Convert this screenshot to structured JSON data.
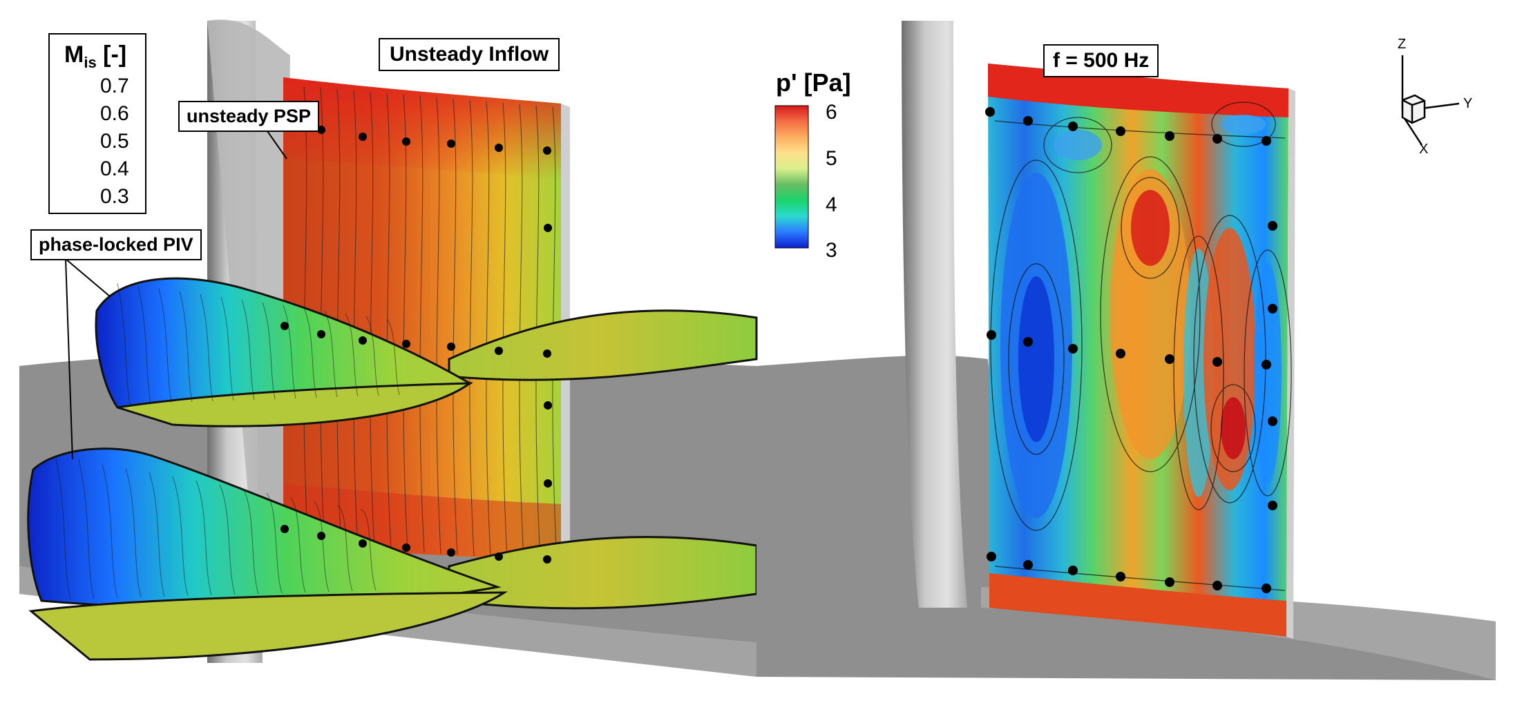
{
  "left_panel": {
    "title": "Unsteady Inflow",
    "label_psp": "unsteady PSP",
    "label_piv": "phase-locked PIV",
    "legend": {
      "title_main": "M",
      "title_sub": "is",
      "title_unit": "[-]",
      "ticks": [
        "0.7",
        "0.6",
        "0.5",
        "0.4",
        "0.3"
      ],
      "colormap": [
        "#d7191c",
        "#f46d43",
        "#fdae61",
        "#fee08b",
        "#d9ef8b",
        "#66bd63",
        "#1bd36b",
        "#2bd9d0",
        "#2c7bff",
        "#0a1fd0"
      ]
    }
  },
  "right_panel": {
    "title": "f = 500 Hz",
    "legend": {
      "title": "p' [Pa]",
      "ticks": [
        "6",
        "5",
        "4",
        "3"
      ],
      "colormap": [
        "#d7191c",
        "#f46d43",
        "#fdae61",
        "#fee08b",
        "#d9ef8b",
        "#66bd63",
        "#1bd36b",
        "#2bd9d0",
        "#2c7bff",
        "#0a1fd0"
      ]
    },
    "axes": {
      "z": "Z",
      "y": "Y",
      "x": "X"
    }
  },
  "colors": {
    "hub": "#9a9a9a",
    "blade_edge": "#c8c8c8",
    "sensor": "#000000"
  }
}
